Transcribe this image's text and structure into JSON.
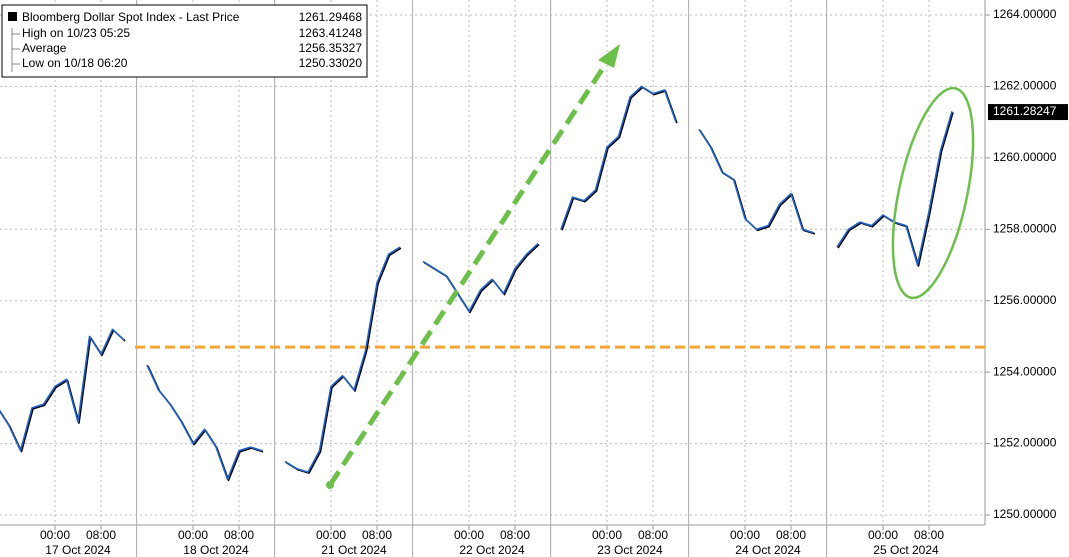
{
  "chart_data": {
    "type": "line",
    "legend": {
      "title": "Bloomberg Dollar Spot Index - Last Price",
      "title_value": "1261.29468",
      "rows": [
        {
          "label": "High on 10/23 05:25",
          "value": "1263.41248"
        },
        {
          "label": "Average",
          "value": "1256.35327"
        },
        {
          "label": "Low on 10/18 06:20",
          "value": "1250.33020"
        }
      ]
    },
    "categories": [
      null,
      null,
      null,
      null,
      null,
      "00:00",
      null,
      null,
      null,
      "08:00",
      null,
      null,
      null,
      null,
      null,
      null,
      null,
      "00:00",
      null,
      null,
      null,
      "08:00",
      null,
      null,
      null,
      null,
      null,
      null,
      null,
      "00:00",
      null,
      null,
      null,
      "08:00",
      null,
      null,
      null,
      null,
      null,
      null,
      null,
      "00:00",
      null,
      null,
      null,
      "08:00",
      null,
      null,
      null,
      null,
      null,
      null,
      null,
      "00:00",
      null,
      null,
      null,
      "08:00",
      null,
      null,
      null,
      null,
      null,
      null,
      null,
      "00:00",
      null,
      null,
      null,
      "08:00",
      null,
      null,
      null,
      null,
      null,
      null,
      null,
      "00:00",
      null,
      null,
      null,
      "08:00",
      null,
      null
    ],
    "x_groups": [
      "17 Oct 2024",
      "18 Oct 2024",
      "21 Oct 2024",
      "22 Oct 2024",
      "23 Oct 2024",
      "24 Oct 2024",
      "25 Oct 2024"
    ],
    "series": [
      {
        "name": "Bloomberg Dollar Spot Index",
        "color": "#1f63c6",
        "values": [
          1253.0,
          1252.5,
          1251.8,
          1253.0,
          1253.1,
          1253.6,
          1253.8,
          1252.6,
          1255.0,
          1254.5,
          1255.2,
          1254.9,
          null,
          1254.2,
          1253.5,
          1253.1,
          1252.6,
          1252.0,
          1252.4,
          1251.9,
          1251.0,
          1251.8,
          1251.9,
          1251.8,
          null,
          1251.5,
          1251.3,
          1251.2,
          1251.8,
          1253.6,
          1253.9,
          1253.5,
          1254.6,
          1256.5,
          1257.3,
          1257.5,
          null,
          1257.1,
          1256.9,
          1256.7,
          1256.2,
          1255.7,
          1256.3,
          1256.6,
          1256.2,
          1256.9,
          1257.3,
          1257.6,
          null,
          1258.0,
          1258.9,
          1258.8,
          1259.1,
          1260.3,
          1260.6,
          1261.7,
          1262.0,
          1261.8,
          1261.9,
          1261.0,
          null,
          1260.8,
          1260.3,
          1259.6,
          1259.4,
          1258.3,
          1258.0,
          1258.1,
          1258.7,
          1259.0,
          1258.0,
          1257.9,
          null,
          1257.5,
          1258.0,
          1258.2,
          1258.1,
          1258.4,
          1258.2,
          1258.1,
          1257.0,
          1258.5,
          1260.2,
          1261.3
        ]
      }
    ],
    "last_value": 1261.28247,
    "reference_line": {
      "value": 1254.7,
      "color": "#f5a533"
    },
    "ylim": [
      1250,
      1264
    ],
    "yticks": [
      {
        "value": 1250,
        "label": "1250.00000"
      },
      {
        "value": 1252,
        "label": "1252.00000"
      },
      {
        "value": 1254,
        "label": "1254.00000"
      },
      {
        "value": 1256,
        "label": "1256.00000"
      },
      {
        "value": 1258,
        "label": "1258.00000"
      },
      {
        "value": 1260,
        "label": "1260.00000"
      },
      {
        "value": 1262,
        "label": "1262.00000"
      },
      {
        "value": 1264,
        "label": "1264.00000"
      }
    ],
    "grid": true
  }
}
